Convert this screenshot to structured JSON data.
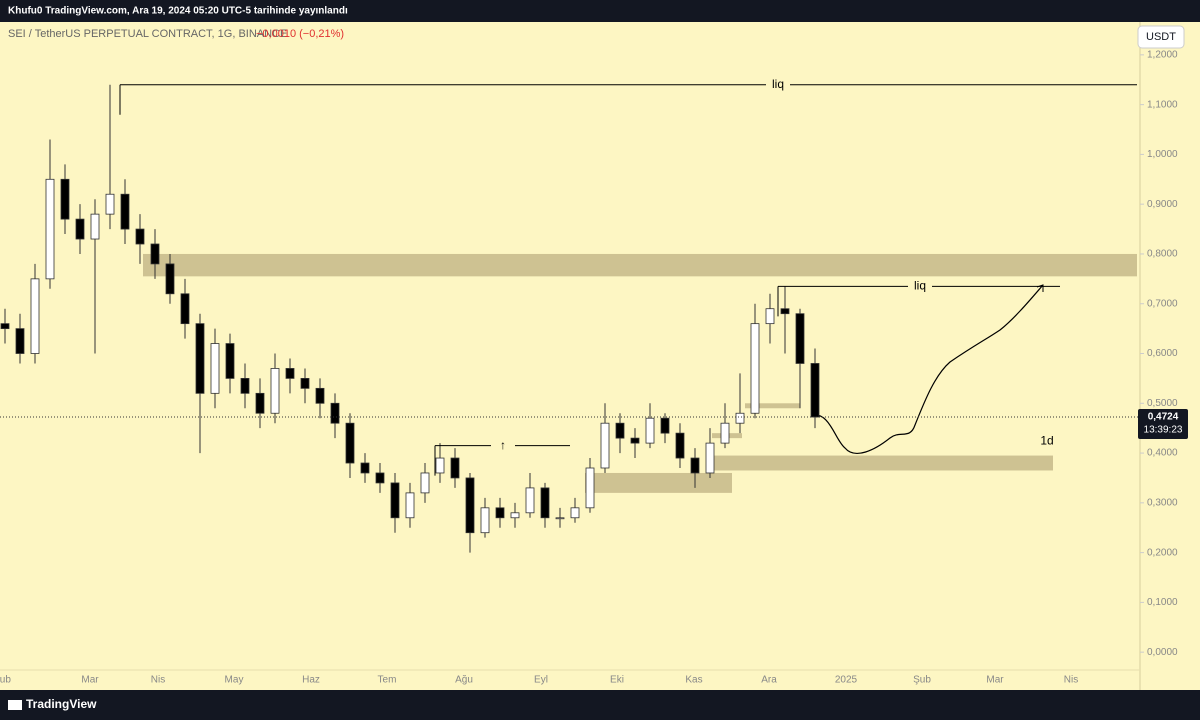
{
  "header": {
    "credit": "Khufu0 TradingView.com, Ara 19, 2024 05:20 UTC-5 tarihinde yayınlandı",
    "footer": "TradingView"
  },
  "chart_data": {
    "type": "candlestick",
    "title": "SEI / TetherUS PERPETUAL CONTRACT, 1G, BINANCE",
    "change": "−0,0010 (−0,21%)",
    "currency": "USDT",
    "open": [
      0.66,
      0.65,
      0.6,
      0.75,
      0.95,
      0.87,
      0.83,
      0.88,
      0.92,
      0.85,
      0.82,
      0.78,
      0.72,
      0.66,
      0.52,
      0.62,
      0.55,
      0.52,
      0.48,
      0.57,
      0.55,
      0.53,
      0.5,
      0.46,
      0.38,
      0.36,
      0.34,
      0.27,
      0.32,
      0.36,
      0.39,
      0.35,
      0.24,
      0.29,
      0.27,
      0.28,
      0.33,
      0.27,
      0.27,
      0.29,
      0.37,
      0.46,
      0.43,
      0.42,
      0.47,
      0.44,
      0.39,
      0.36,
      0.42,
      0.46,
      0.48,
      0.66,
      0.69,
      0.68,
      0.58
    ],
    "high": [
      0.69,
      0.68,
      0.78,
      1.03,
      0.98,
      0.9,
      0.91,
      1.14,
      0.95,
      0.88,
      0.85,
      0.8,
      0.75,
      0.68,
      0.65,
      0.64,
      0.58,
      0.55,
      0.6,
      0.59,
      0.57,
      0.55,
      0.52,
      0.48,
      0.4,
      0.38,
      0.36,
      0.34,
      0.38,
      0.42,
      0.41,
      0.36,
      0.31,
      0.31,
      0.3,
      0.36,
      0.34,
      0.29,
      0.31,
      0.39,
      0.5,
      0.48,
      0.45,
      0.5,
      0.48,
      0.46,
      0.41,
      0.45,
      0.5,
      0.56,
      0.7,
      0.72,
      0.735,
      0.69,
      0.61
    ],
    "low": [
      0.62,
      0.58,
      0.58,
      0.73,
      0.84,
      0.8,
      0.6,
      0.85,
      0.82,
      0.78,
      0.75,
      0.7,
      0.63,
      0.4,
      0.49,
      0.52,
      0.49,
      0.45,
      0.46,
      0.52,
      0.5,
      0.47,
      0.43,
      0.35,
      0.34,
      0.32,
      0.24,
      0.25,
      0.3,
      0.34,
      0.33,
      0.2,
      0.23,
      0.25,
      0.25,
      0.27,
      0.25,
      0.25,
      0.26,
      0.28,
      0.36,
      0.4,
      0.39,
      0.41,
      0.42,
      0.37,
      0.33,
      0.35,
      0.41,
      0.44,
      0.47,
      0.62,
      0.6,
      0.49,
      0.45
    ],
    "close": [
      0.65,
      0.6,
      0.75,
      0.95,
      0.87,
      0.83,
      0.88,
      0.92,
      0.85,
      0.82,
      0.78,
      0.72,
      0.66,
      0.52,
      0.62,
      0.55,
      0.52,
      0.48,
      0.57,
      0.55,
      0.53,
      0.5,
      0.46,
      0.38,
      0.36,
      0.34,
      0.27,
      0.32,
      0.36,
      0.39,
      0.35,
      0.24,
      0.29,
      0.27,
      0.28,
      0.33,
      0.27,
      0.27,
      0.29,
      0.37,
      0.46,
      0.43,
      0.42,
      0.47,
      0.44,
      0.39,
      0.36,
      0.42,
      0.46,
      0.48,
      0.66,
      0.69,
      0.68,
      0.58,
      0.4724
    ],
    "ylim": [
      -0.076,
      1.266
    ],
    "yticks": [
      {
        "value": 0,
        "label": "0,0000"
      },
      {
        "value": 0.1,
        "label": "0,1000"
      },
      {
        "value": 0.2,
        "label": "0,2000"
      },
      {
        "value": 0.3,
        "label": "0,3000"
      },
      {
        "value": 0.4,
        "label": "0,4000"
      },
      {
        "value": 0.5,
        "label": "0,5000"
      },
      {
        "value": 0.6,
        "label": "0,6000"
      },
      {
        "value": 0.7,
        "label": "0,7000"
      },
      {
        "value": 0.8,
        "label": "0,8000"
      },
      {
        "value": 0.9,
        "label": "0,9000"
      },
      {
        "value": 1.0,
        "label": "1,0000"
      },
      {
        "value": 1.1,
        "label": "1,1000"
      },
      {
        "value": 1.2,
        "label": "1,2000"
      }
    ],
    "x_axis_labels": [
      "Şub",
      "Mar",
      "Nis",
      "May",
      "Haz",
      "Tem",
      "Ağu",
      "Eyl",
      "Eki",
      "Kas",
      "Ara",
      "2025",
      "Şub",
      "Mar",
      "Nis"
    ],
    "last_price": {
      "value": 0.4724,
      "label": "0,4724"
    },
    "countdown": "13:39:23",
    "zones": [
      {
        "low": 0.755,
        "high": 0.8
      },
      {
        "low": 0.32,
        "high": 0.36
      },
      {
        "low": 0.43,
        "high": 0.44
      },
      {
        "low": 0.49,
        "high": 0.5
      },
      {
        "low": 0.365,
        "high": 0.395,
        "label": "1d"
      }
    ],
    "levels": [
      {
        "value": 1.14,
        "label": "liq"
      },
      {
        "value": 0.735,
        "label": "liq"
      },
      {
        "value": 0.415,
        "label": "↑"
      }
    ],
    "up_color": "#ffffff",
    "down_color": "#000000",
    "zone_color": "#c9bd8d",
    "grid": false
  }
}
